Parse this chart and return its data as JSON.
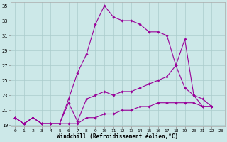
{
  "xlabel": "Windchill (Refroidissement éolien,°C)",
  "bg_color": "#cce8e8",
  "grid_color": "#aacccc",
  "line_color": "#990099",
  "xlim": [
    -0.5,
    23.5
  ],
  "ylim": [
    18.8,
    35.5
  ],
  "yticks": [
    19,
    21,
    23,
    25,
    27,
    29,
    31,
    33,
    35
  ],
  "xticks": [
    0,
    1,
    2,
    3,
    4,
    5,
    6,
    7,
    8,
    9,
    10,
    11,
    12,
    13,
    14,
    15,
    16,
    17,
    18,
    19,
    20,
    21,
    22,
    23
  ],
  "series": [
    [
      20.0,
      19.2,
      20.0,
      19.2,
      19.2,
      19.2,
      22.5,
      26.0,
      28.5,
      32.5,
      35.0,
      33.5,
      33.0,
      33.0,
      32.5,
      31.5,
      31.5,
      31.0,
      27.0,
      30.5,
      23.0,
      21.5,
      21.5
    ],
    [
      20.0,
      19.2,
      20.0,
      19.2,
      19.2,
      19.2,
      22.0,
      19.5,
      22.5,
      23.0,
      23.5,
      23.0,
      23.5,
      23.5,
      24.0,
      24.5,
      25.0,
      25.5,
      27.0,
      24.0,
      23.0,
      22.5,
      21.5
    ],
    [
      20.0,
      19.2,
      20.0,
      19.2,
      19.2,
      19.2,
      19.2,
      19.2,
      20.0,
      20.0,
      20.5,
      20.5,
      21.0,
      21.0,
      21.5,
      21.5,
      22.0,
      22.0,
      22.0,
      22.0,
      22.0,
      21.5,
      21.5
    ]
  ]
}
